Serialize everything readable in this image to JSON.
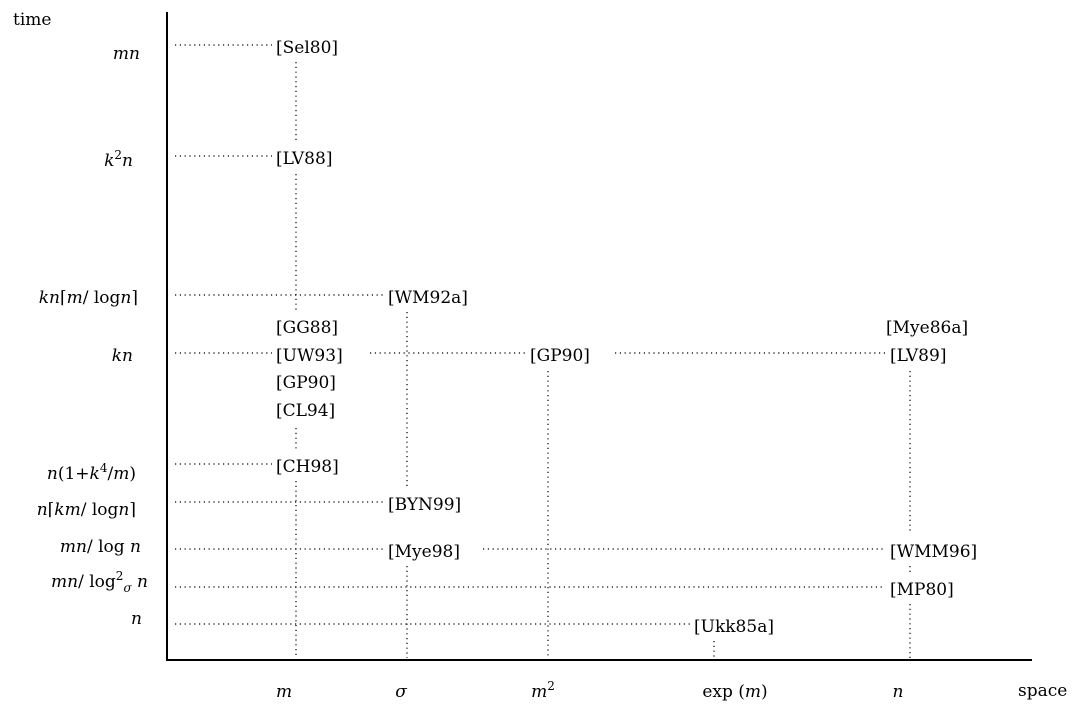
{
  "axes": {
    "y_title": "time",
    "x_title": "space"
  },
  "y_labels": [
    {
      "id": "mn",
      "parts": [
        {
          "t": "mn",
          "i": true
        }
      ]
    },
    {
      "id": "k2n",
      "parts": [
        {
          "t": "k",
          "i": true
        },
        {
          "t": "2",
          "sup": true
        },
        {
          "t": "n",
          "i": true
        }
      ]
    },
    {
      "id": "kn-ceil-m-logn",
      "parts": [
        {
          "t": "kn",
          "i": true
        },
        {
          "t": "⌈"
        },
        {
          "t": "m",
          "i": true
        },
        {
          "t": "/ log"
        },
        {
          "t": "n",
          "i": true
        },
        {
          "t": "⌉"
        }
      ]
    },
    {
      "id": "kn",
      "parts": [
        {
          "t": "kn",
          "i": true
        }
      ]
    },
    {
      "id": "n-1-k4-m",
      "parts": [
        {
          "t": "n",
          "i": true
        },
        {
          "t": "(1+"
        },
        {
          "t": "k",
          "i": true
        },
        {
          "t": "4",
          "sup": true
        },
        {
          "t": "/"
        },
        {
          "t": "m",
          "i": true
        },
        {
          "t": ")"
        }
      ]
    },
    {
      "id": "n-ceil-km-logn",
      "parts": [
        {
          "t": "n",
          "i": true
        },
        {
          "t": "⌈"
        },
        {
          "t": "km",
          "i": true
        },
        {
          "t": "/ log"
        },
        {
          "t": "n",
          "i": true
        },
        {
          "t": "⌉"
        }
      ]
    },
    {
      "id": "mn-logn",
      "parts": [
        {
          "t": "mn",
          "i": true
        },
        {
          "t": "/ log"
        },
        {
          "t": " n",
          "i": true
        }
      ]
    },
    {
      "id": "mn-log2sigma-n",
      "parts": [
        {
          "t": "mn",
          "i": true
        },
        {
          "t": "/ log"
        },
        {
          "t": "2",
          "sup": true
        },
        {
          "t": "σ",
          "sub": true,
          "i": true
        },
        {
          "t": " n",
          "i": true
        }
      ]
    },
    {
      "id": "n",
      "parts": [
        {
          "t": "n",
          "i": true
        }
      ]
    }
  ],
  "x_labels": [
    {
      "id": "m",
      "parts": [
        {
          "t": "m",
          "i": true
        }
      ]
    },
    {
      "id": "sigma",
      "parts": [
        {
          "t": "σ",
          "i": true
        }
      ]
    },
    {
      "id": "m2",
      "parts": [
        {
          "t": "m",
          "i": true
        },
        {
          "t": "2",
          "sup": true
        }
      ]
    },
    {
      "id": "exp-m",
      "parts": [
        {
          "t": "exp ("
        },
        {
          "t": "m",
          "i": true
        },
        {
          "t": ")"
        }
      ]
    },
    {
      "id": "n",
      "parts": [
        {
          "t": "n",
          "i": true
        }
      ]
    }
  ],
  "references": [
    "[Sel80]",
    "[LV88]",
    "[WM92a]",
    "[GG88]",
    "[UW93]",
    "[GP90]",
    "[CL94]",
    "[GP90]",
    "[Mye86a]",
    "[LV89]",
    "[CH98]",
    "[BYN99]",
    "[Mye98]",
    "[WMM96]",
    "[MP80]",
    "[Ukk85a]"
  ]
}
